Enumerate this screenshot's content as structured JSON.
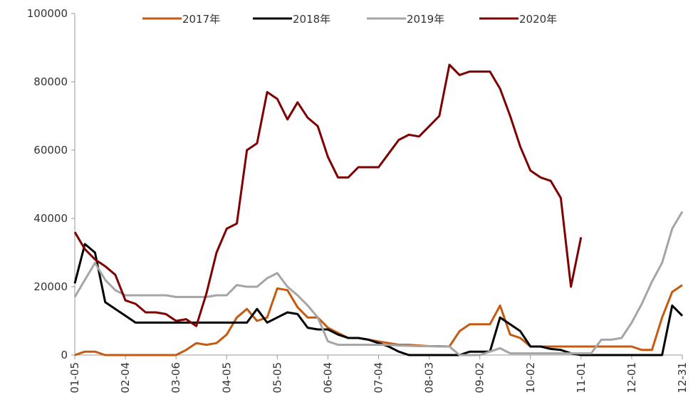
{
  "chart_data": {
    "type": "line",
    "categories": [
      "01-05",
      null,
      null,
      null,
      null,
      "02-04",
      null,
      null,
      null,
      null,
      "03-06",
      null,
      null,
      null,
      null,
      "04-05",
      null,
      null,
      null,
      null,
      "05-05",
      null,
      null,
      null,
      null,
      "06-04",
      null,
      null,
      null,
      null,
      "07-04",
      null,
      null,
      null,
      null,
      "08-03",
      null,
      null,
      null,
      null,
      "09-02",
      null,
      null,
      null,
      null,
      "10-02",
      null,
      null,
      null,
      null,
      "11-01",
      null,
      null,
      null,
      null,
      "12-01",
      null,
      null,
      null,
      null,
      "12-31"
    ],
    "series": [
      {
        "name": "2017年",
        "color": "#c55a11",
        "values": [
          0,
          1000,
          1000,
          0,
          0,
          0,
          0,
          0,
          0,
          0,
          0,
          1500,
          3500,
          3000,
          3500,
          6000,
          11000,
          13500,
          10000,
          11000,
          19500,
          19000,
          14000,
          11000,
          11000,
          8000,
          6500,
          5000,
          5000,
          4500,
          4000,
          3500,
          3000,
          3000,
          2800,
          2600,
          2600,
          2500,
          7000,
          9000,
          9000,
          9000,
          14500,
          6000,
          5000,
          2500,
          2500,
          2500,
          2500,
          2500,
          2500,
          2500,
          2500,
          2500,
          2500,
          2500,
          1500,
          1500,
          11000,
          18500,
          20500
        ]
      },
      {
        "name": "2018年",
        "color": "#000000",
        "values": [
          21000,
          32500,
          30000,
          15500,
          13500,
          11500,
          9500,
          9500,
          9500,
          9500,
          9500,
          9500,
          9500,
          9500,
          9500,
          9500,
          9500,
          9500,
          13500,
          9500,
          11000,
          12500,
          12000,
          8000,
          7500,
          7500,
          6000,
          5000,
          5000,
          4500,
          3500,
          2500,
          1000,
          0,
          0,
          0,
          0,
          0,
          0,
          1000,
          1000,
          1000,
          11000,
          9000,
          7000,
          2500,
          2500,
          1800,
          1500,
          500,
          0,
          0,
          0,
          0,
          0,
          0,
          0,
          0,
          0,
          14500,
          11500
        ]
      },
      {
        "name": "2019年",
        "color": "#a5a5a5",
        "values": [
          17000,
          22000,
          27000,
          22000,
          19000,
          17500,
          17500,
          17500,
          17500,
          17500,
          17000,
          17000,
          17000,
          17000,
          17500,
          17500,
          20500,
          20000,
          20000,
          22500,
          24000,
          20000,
          17500,
          14500,
          11000,
          4000,
          3000,
          3000,
          3000,
          3000,
          3000,
          3000,
          2800,
          2700,
          2600,
          2600,
          2500,
          2500,
          0,
          0,
          0,
          1000,
          2000,
          500,
          500,
          500,
          500,
          500,
          500,
          500,
          500,
          500,
          4500,
          4500,
          5000,
          9500,
          15000,
          21500,
          27000,
          37000,
          42000
        ]
      },
      {
        "name": "2020年",
        "color": "#7f0000",
        "values": [
          36000,
          31000,
          28000,
          26000,
          23500,
          16000,
          15000,
          12500,
          12500,
          12000,
          10000,
          10500,
          8500,
          18000,
          30000,
          37000,
          38500,
          60000,
          62000,
          77000,
          75000,
          69000,
          74000,
          69500,
          67000,
          58000,
          52000,
          52000,
          55000,
          55000,
          55000,
          59000,
          63000,
          64500,
          64000,
          67000,
          70000,
          85000,
          82000,
          83000,
          83000,
          83000,
          78000,
          70000,
          61000,
          54000,
          52000,
          51000,
          46000,
          20000,
          34500,
          null,
          null,
          null,
          null,
          null,
          null,
          null,
          null,
          null,
          null
        ]
      }
    ],
    "ylim": [
      0,
      100000
    ],
    "yticks": [
      0,
      20000,
      40000,
      60000,
      80000,
      100000
    ]
  }
}
